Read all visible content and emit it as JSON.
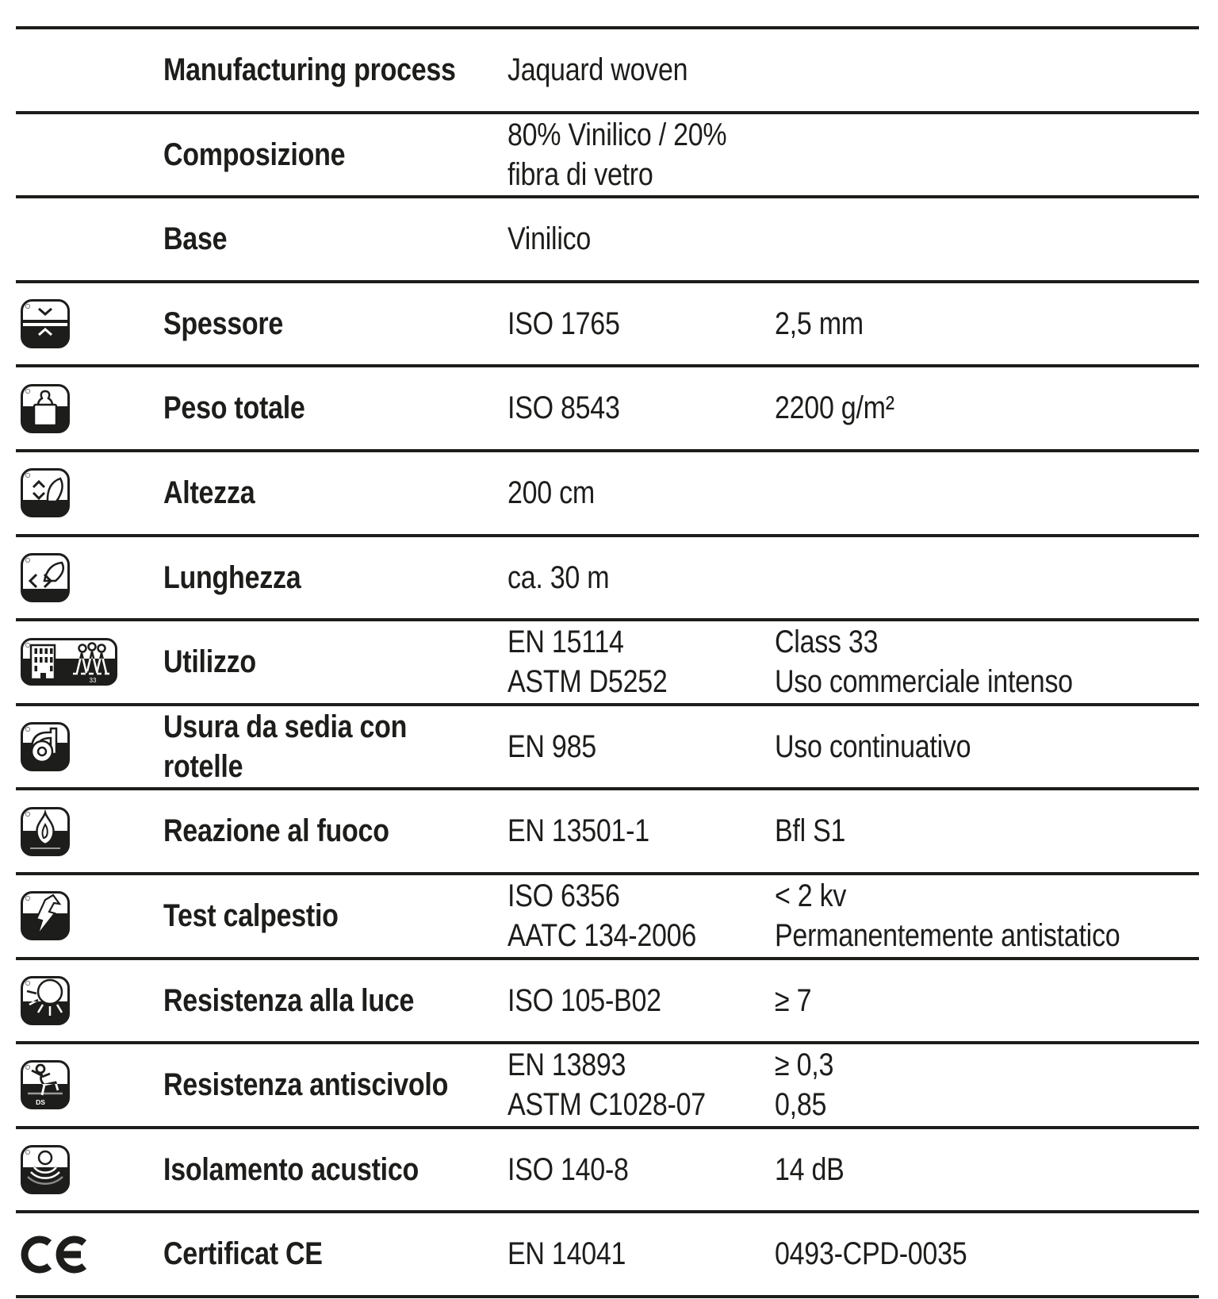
{
  "page": {
    "background": "#ffffff",
    "ink_color": "#1d1d1b",
    "rule_color": "#1d1d1b"
  },
  "table": {
    "rows": [
      {
        "icon": "",
        "label": "Manufacturing process",
        "standard": "Jaquard woven",
        "value": ""
      },
      {
        "icon": "",
        "label": "Composizione",
        "standard": "80% Vinilico / 20% fibra di vetro",
        "value": ""
      },
      {
        "icon": "",
        "label": "Base",
        "standard": "Vinilico",
        "value": ""
      },
      {
        "icon": "thickness-icon",
        "label": "Spessore",
        "standard": "ISO 1765",
        "value": "2,5 mm"
      },
      {
        "icon": "weight-icon",
        "label": "Peso totale",
        "standard": "ISO 8543",
        "value": "2200 g/m²"
      },
      {
        "icon": "height-icon",
        "label": "Altezza",
        "standard": "200 cm",
        "value": ""
      },
      {
        "icon": "length-icon",
        "label": "Lunghezza",
        "standard": "ca. 30 m",
        "value": ""
      },
      {
        "icon": "usage-class-icon",
        "label": "Utilizzo",
        "standard": "EN 15114\nASTM D5252",
        "value": "Class 33\nUso commerciale intenso"
      },
      {
        "icon": "castor-chair-icon",
        "label": "Usura da sedia con\nrotelle",
        "standard": "EN 985",
        "value": "Uso continuativo"
      },
      {
        "icon": "fire-reaction-icon",
        "label": "Reazione al fuoco",
        "standard": "EN 13501-1",
        "value": "Bfl S1"
      },
      {
        "icon": "antistatic-icon",
        "label": "Test calpestio",
        "standard": "ISO 6356\nAATC 134-2006",
        "value": "< 2 kv\nPermanentemente antistatico"
      },
      {
        "icon": "light-resistance-icon",
        "label": "Resistenza alla luce",
        "standard": "ISO 105-B02",
        "value": "≥ 7"
      },
      {
        "icon": "slip-resistance-icon",
        "label": "Resistenza antiscivolo",
        "standard": "EN 13893\nASTM C1028-07",
        "value": "≥ 0,3\n0,85"
      },
      {
        "icon": "acoustic-icon",
        "label": "Isolamento acustico",
        "standard": "ISO 140-8",
        "value": "14 dB"
      },
      {
        "icon": "ce-mark-icon",
        "label": "Certificat CE",
        "standard": "EN 14041",
        "value": "0493-CPD-0035"
      }
    ],
    "icon_badges": {
      "usage_class_badge": "33",
      "slip_badge": "DS"
    }
  }
}
